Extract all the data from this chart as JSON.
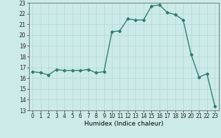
{
  "x": [
    0,
    1,
    2,
    3,
    4,
    5,
    6,
    7,
    8,
    9,
    10,
    11,
    12,
    13,
    14,
    15,
    16,
    17,
    18,
    19,
    20,
    21,
    22,
    23
  ],
  "y": [
    16.6,
    16.5,
    16.3,
    16.8,
    16.7,
    16.7,
    16.7,
    16.8,
    16.5,
    16.6,
    20.3,
    20.4,
    21.5,
    21.4,
    21.4,
    22.7,
    22.8,
    22.1,
    21.9,
    21.4,
    18.2,
    16.1,
    16.4,
    13.4
  ],
  "line_color": "#2e7d6e",
  "marker": "D",
  "marker_size": 2,
  "bg_color": "#cceae7",
  "grid_color": "#b0d8d4",
  "xlabel": "Humidex (Indice chaleur)",
  "xlim": [
    -0.5,
    23.5
  ],
  "ylim": [
    13,
    23
  ],
  "yticks": [
    13,
    14,
    15,
    16,
    17,
    18,
    19,
    20,
    21,
    22,
    23
  ],
  "xticks": [
    0,
    1,
    2,
    3,
    4,
    5,
    6,
    7,
    8,
    9,
    10,
    11,
    12,
    13,
    14,
    15,
    16,
    17,
    18,
    19,
    20,
    21,
    22,
    23
  ],
  "tick_fontsize": 5.5,
  "xlabel_fontsize": 6.5,
  "line_width": 1.0
}
